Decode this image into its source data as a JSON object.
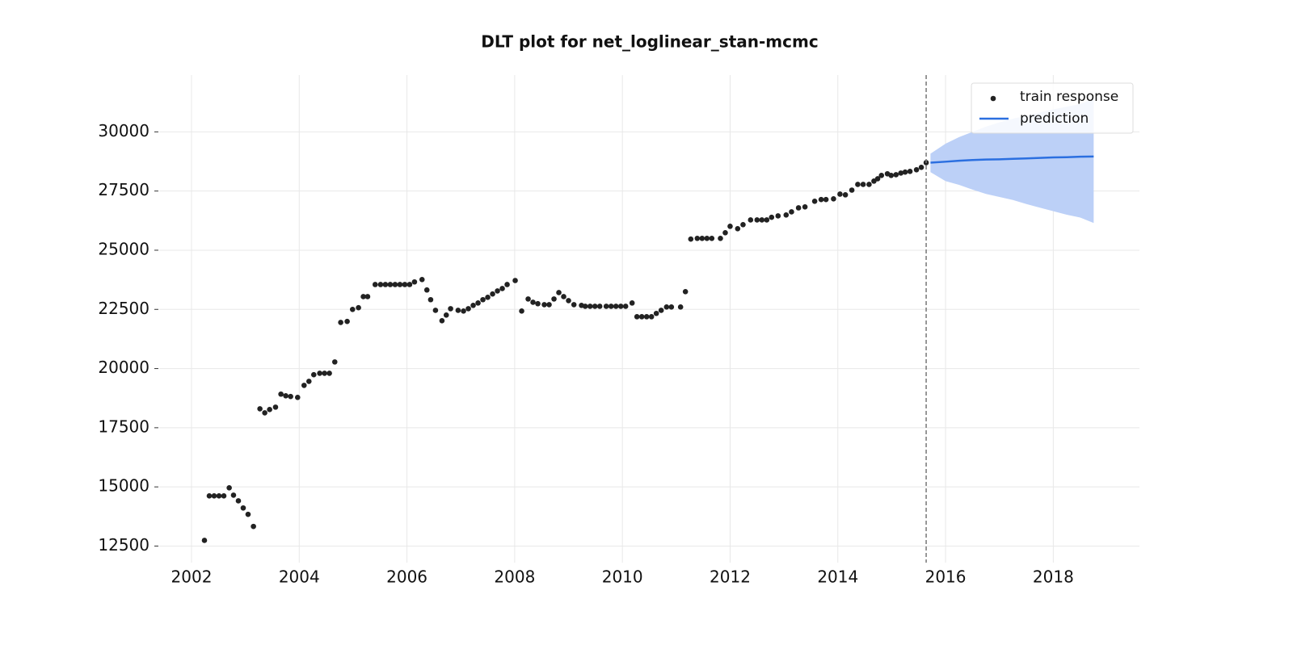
{
  "chart_data": {
    "type": "line",
    "title": "DLT plot for net_loglinear_stan-mcmc",
    "xlim": [
      2001.4,
      2019.6
    ],
    "ylim": [
      11800,
      32400
    ],
    "xticks": [
      2002,
      2004,
      2006,
      2008,
      2010,
      2012,
      2014,
      2016,
      2018
    ],
    "yticks": [
      12500,
      15000,
      17500,
      20000,
      22500,
      25000,
      27500,
      30000
    ],
    "grid": true,
    "legend": "upper-right",
    "cutoff_x": 2015.64,
    "series": [
      {
        "name": "train response",
        "type": "scatter",
        "color": "#222222",
        "x": [
          2002.24,
          2002.33,
          2002.42,
          2002.51,
          2002.6,
          2002.7,
          2002.78,
          2002.87,
          2002.96,
          2003.05,
          2003.15,
          2003.27,
          2003.36,
          2003.45,
          2003.56,
          2003.66,
          2003.75,
          2003.84,
          2003.97,
          2004.09,
          2004.18,
          2004.27,
          2004.38,
          2004.47,
          2004.56,
          2004.66,
          2004.77,
          2004.89,
          2004.99,
          2005.1,
          2005.19,
          2005.27,
          2005.41,
          2005.51,
          2005.6,
          2005.69,
          2005.78,
          2005.87,
          2005.96,
          2006.05,
          2006.14,
          2006.28,
          2006.37,
          2006.44,
          2006.53,
          2006.65,
          2006.73,
          2006.81,
          2006.95,
          2007.05,
          2007.14,
          2007.23,
          2007.32,
          2007.41,
          2007.5,
          2007.59,
          2007.68,
          2007.77,
          2007.86,
          2008.01,
          2008.13,
          2008.25,
          2008.34,
          2008.43,
          2008.55,
          2008.64,
          2008.73,
          2008.82,
          2008.91,
          2009.0,
          2009.1,
          2009.24,
          2009.31,
          2009.4,
          2009.49,
          2009.58,
          2009.7,
          2009.79,
          2009.88,
          2009.97,
          2010.06,
          2010.18,
          2010.27,
          2010.36,
          2010.45,
          2010.54,
          2010.63,
          2010.72,
          2010.82,
          2010.91,
          2011.08,
          2011.17,
          2011.27,
          2011.39,
          2011.48,
          2011.57,
          2011.66,
          2011.82,
          2011.91,
          2012.0,
          2012.14,
          2012.24,
          2012.38,
          2012.5,
          2012.59,
          2012.68,
          2012.77,
          2012.89,
          2013.04,
          2013.14,
          2013.27,
          2013.39,
          2013.57,
          2013.69,
          2013.78,
          2013.92,
          2014.04,
          2014.14,
          2014.26,
          2014.37,
          2014.47,
          2014.58,
          2014.67,
          2014.74,
          2014.81,
          2014.92,
          2014.99,
          2015.08,
          2015.17,
          2015.25,
          2015.34,
          2015.46,
          2015.55,
          2015.64
        ],
        "values": [
          12740,
          14620,
          14620,
          14620,
          14620,
          14960,
          14650,
          14410,
          14110,
          13840,
          13330,
          18300,
          18130,
          18270,
          18370,
          18920,
          18850,
          18820,
          18780,
          19290,
          19460,
          19740,
          19800,
          19800,
          19800,
          20280,
          21950,
          21990,
          22500,
          22570,
          23040,
          23040,
          23550,
          23550,
          23550,
          23550,
          23550,
          23550,
          23550,
          23550,
          23660,
          23760,
          23320,
          22910,
          22460,
          22020,
          22260,
          22530,
          22460,
          22430,
          22530,
          22670,
          22770,
          22910,
          23010,
          23150,
          23280,
          23380,
          23550,
          23720,
          22430,
          22940,
          22800,
          22740,
          22700,
          22700,
          22940,
          23210,
          23040,
          22870,
          22700,
          22670,
          22630,
          22630,
          22630,
          22630,
          22630,
          22630,
          22630,
          22630,
          22630,
          22770,
          22190,
          22190,
          22190,
          22190,
          22330,
          22460,
          22600,
          22600,
          22600,
          23250,
          25470,
          25500,
          25500,
          25500,
          25500,
          25500,
          25740,
          26010,
          25910,
          26080,
          26280,
          26280,
          26280,
          26280,
          26390,
          26450,
          26490,
          26620,
          26790,
          26830,
          27070,
          27140,
          27140,
          27170,
          27370,
          27340,
          27540,
          27780,
          27780,
          27780,
          27920,
          28020,
          28160,
          28230,
          28160,
          28190,
          28260,
          28300,
          28330,
          28400,
          28500,
          28700
        ]
      },
      {
        "name": "prediction",
        "type": "line",
        "color": "#2b6fe0",
        "band_color": "#bcd0f7",
        "x": [
          2015.72,
          2016.0,
          2016.25,
          2016.5,
          2016.75,
          2017.0,
          2017.25,
          2017.5,
          2017.75,
          2018.0,
          2018.25,
          2018.5,
          2018.75
        ],
        "values": [
          28700,
          28740,
          28780,
          28810,
          28830,
          28840,
          28860,
          28880,
          28900,
          28920,
          28930,
          28950,
          28960
        ],
        "upper": [
          29080,
          29500,
          29780,
          30000,
          30220,
          30400,
          30560,
          30680,
          30820,
          30950,
          31060,
          31180,
          31400
        ],
        "lower": [
          28300,
          27920,
          27760,
          27560,
          27380,
          27250,
          27120,
          26950,
          26800,
          26650,
          26500,
          26380,
          26150
        ]
      }
    ]
  }
}
